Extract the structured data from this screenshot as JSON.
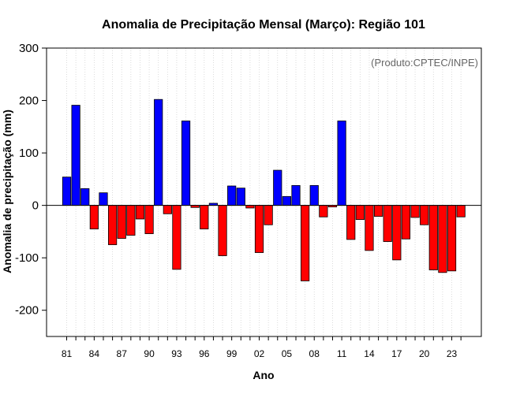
{
  "chart_data": {
    "type": "bar",
    "title": "Anomalia de Precipitação Mensal (Março): Região 101",
    "xlabel": "Ano",
    "ylabel": "Anomalia de precipitação (mm)",
    "credit": "(Produto:CPTEC/INPE)",
    "ylim": [
      -250,
      300
    ],
    "yticks": [
      300,
      200,
      100,
      0,
      -100,
      -200
    ],
    "x_tick_labels": [
      "81",
      "84",
      "87",
      "90",
      "93",
      "96",
      "99",
      "02",
      "05",
      "08",
      "11",
      "14",
      "17",
      "20",
      "23"
    ],
    "categories": [
      "1981",
      "1982",
      "1983",
      "1984",
      "1985",
      "1986",
      "1987",
      "1988",
      "1989",
      "1990",
      "1991",
      "1992",
      "1993",
      "1994",
      "1995",
      "1996",
      "1997",
      "1998",
      "1999",
      "2000",
      "2001",
      "2002",
      "2003",
      "2004",
      "2005",
      "2006",
      "2007",
      "2008",
      "2009",
      "2010",
      "2011",
      "2012",
      "2013",
      "2014",
      "2015",
      "2016",
      "2017",
      "2018",
      "2019",
      "2020",
      "2021",
      "2022",
      "2023",
      "2024"
    ],
    "values": [
      54,
      191,
      32,
      -45,
      24,
      -75,
      -63,
      -57,
      -26,
      -54,
      202,
      -16,
      -122,
      161,
      -4,
      -45,
      4,
      -96,
      37,
      33,
      -5,
      -90,
      -37,
      67,
      17,
      38,
      -144,
      38,
      -22,
      -3,
      161,
      -65,
      -27,
      -86,
      -21,
      -69,
      -104,
      -64,
      -23,
      -37,
      -123,
      -128,
      -125,
      -22
    ],
    "colors": {
      "positive": "#0000ff",
      "negative": "#ff0000",
      "border": "#000000",
      "grid": "#d3d3d3"
    },
    "grid": true
  }
}
